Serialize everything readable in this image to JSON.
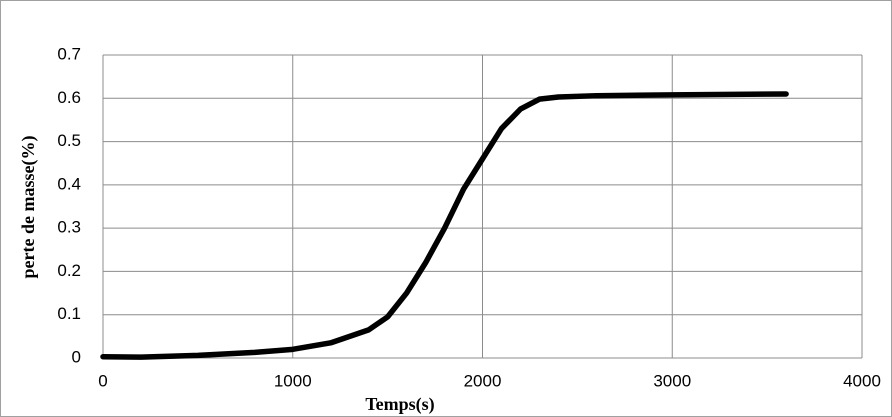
{
  "chart_data": {
    "type": "line",
    "x_label": "Temps(s)",
    "y_label": "perte de masse(%)",
    "series": [
      {
        "name": "perte de masse",
        "color": "#000000",
        "x": [
          0,
          200,
          500,
          800,
          1000,
          1200,
          1400,
          1500,
          1600,
          1700,
          1800,
          1900,
          2000,
          2100,
          2200,
          2300,
          2400,
          2600,
          3000,
          3600
        ],
        "values": [
          0.003,
          0.002,
          0.006,
          0.013,
          0.02,
          0.035,
          0.065,
          0.095,
          0.15,
          0.22,
          0.3,
          0.39,
          0.46,
          0.53,
          0.575,
          0.598,
          0.603,
          0.606,
          0.608,
          0.61
        ]
      }
    ],
    "xlim": [
      0,
      4000
    ],
    "xticks": [
      0,
      1000,
      2000,
      3000,
      4000
    ],
    "ylim": [
      0,
      0.7
    ],
    "yticks": [
      0,
      0.1,
      0.2,
      0.3,
      0.4,
      0.5,
      0.6,
      0.7
    ],
    "grid": true
  }
}
